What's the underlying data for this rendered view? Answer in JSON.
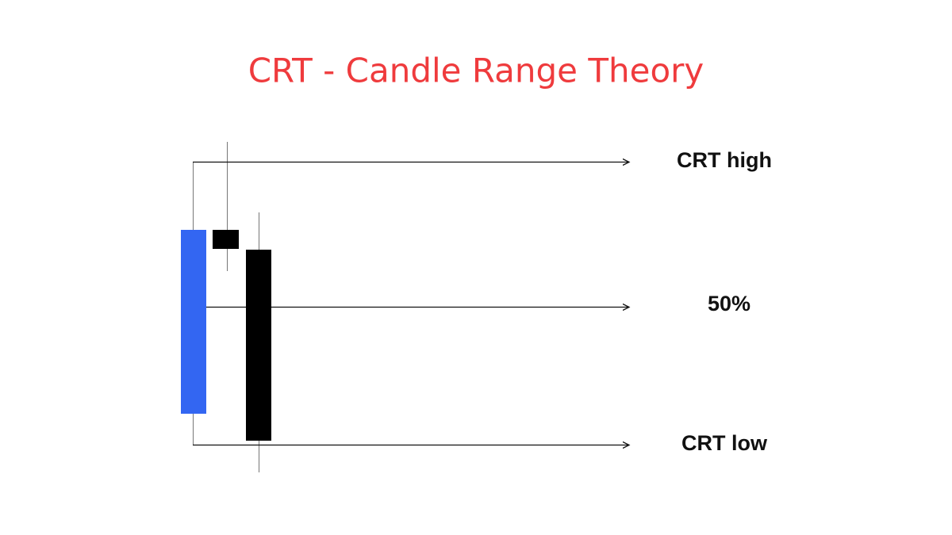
{
  "title": "CRT - Candle Range Theory",
  "levels": {
    "high": "CRT high",
    "mid": "50%",
    "low": "CRT low"
  }
}
